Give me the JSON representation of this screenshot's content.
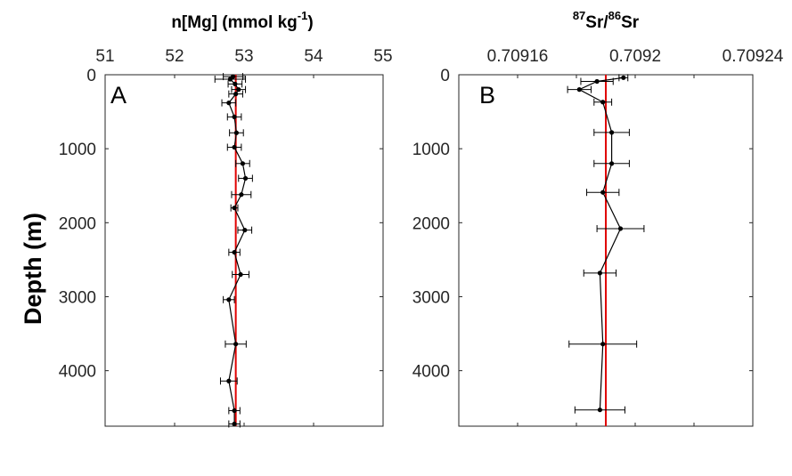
{
  "chart_data": [
    {
      "type": "scatter",
      "panel_label": "A",
      "title": "n[Mg] (mmol kg-1)",
      "title_parts": {
        "main": "n[Mg] (mmol kg",
        "sup": "-1",
        "tail": ")"
      },
      "xlabel": "n[Mg] (mmol kg-1)",
      "ylabel": "Depth (m)",
      "xlim": [
        51,
        55
      ],
      "ylim": [
        0,
        4750
      ],
      "y_reversed": true,
      "x_axis_position": "top",
      "xticks": [
        51,
        52,
        53,
        54,
        55
      ],
      "xtick_labels": [
        "51",
        "52",
        "53",
        "54",
        "55"
      ],
      "yticks": [
        0,
        1000,
        2000,
        3000,
        4000
      ],
      "ytick_labels": [
        "0",
        "1000",
        "2000",
        "3000",
        "4000"
      ],
      "reference_line_x": 52.88,
      "reference_line_color": "#e00000",
      "series_color": "#000000",
      "points": [
        {
          "x": 52.84,
          "y": 25,
          "err": 0.14
        },
        {
          "x": 52.8,
          "y": 60,
          "err": 0.22
        },
        {
          "x": 52.87,
          "y": 125,
          "err": 0.1
        },
        {
          "x": 52.92,
          "y": 200,
          "err": 0.1
        },
        {
          "x": 52.88,
          "y": 260,
          "err": 0.1
        },
        {
          "x": 52.78,
          "y": 380,
          "err": 0.1
        },
        {
          "x": 52.86,
          "y": 570,
          "err": 0.1
        },
        {
          "x": 52.89,
          "y": 785,
          "err": 0.1
        },
        {
          "x": 52.86,
          "y": 980,
          "err": 0.1
        },
        {
          "x": 52.98,
          "y": 1200,
          "err": 0.1
        },
        {
          "x": 53.02,
          "y": 1400,
          "err": 0.1
        },
        {
          "x": 52.96,
          "y": 1620,
          "err": 0.14
        },
        {
          "x": 52.86,
          "y": 1800,
          "err": 0.05
        },
        {
          "x": 53.01,
          "y": 2100,
          "err": 0.1
        },
        {
          "x": 52.86,
          "y": 2400,
          "err": 0.08
        },
        {
          "x": 52.95,
          "y": 2700,
          "err": 0.12
        },
        {
          "x": 52.78,
          "y": 3040,
          "err": 0.08
        },
        {
          "x": 52.88,
          "y": 3640,
          "err": 0.15
        },
        {
          "x": 52.78,
          "y": 4140,
          "err": 0.12
        },
        {
          "x": 52.86,
          "y": 4540,
          "err": 0.08
        },
        {
          "x": 52.86,
          "y": 4720,
          "err": 0.08
        }
      ]
    },
    {
      "type": "scatter",
      "panel_label": "B",
      "title": "87Sr/86Sr",
      "title_parts": {
        "sup1": "87",
        "mid": "Sr/",
        "sup2": "86",
        "tail": "Sr"
      },
      "xlabel": "87Sr/86Sr",
      "ylabel": "",
      "xlim": [
        0.70914,
        0.70924
      ],
      "ylim": [
        0,
        4750
      ],
      "y_reversed": true,
      "x_axis_position": "top",
      "xticks": [
        0.70914,
        0.70916,
        0.70918,
        0.7092,
        0.70922,
        0.70924
      ],
      "xtick_labels": [
        "",
        "0.70916",
        "",
        "0.7092",
        "",
        "0.70924"
      ],
      "yticks": [
        0,
        1000,
        2000,
        3000,
        4000
      ],
      "ytick_labels": [
        "0",
        "1000",
        "2000",
        "3000",
        "4000"
      ],
      "reference_line_x": 0.70919,
      "reference_line_color": "#e00000",
      "series_color": "#000000",
      "points": [
        {
          "x": 0.709196,
          "y": 40,
          "err": 1.5e-06
        },
        {
          "x": 0.709187,
          "y": 90,
          "err": 5.5e-06
        },
        {
          "x": 0.709181,
          "y": 200,
          "err": 4e-06
        },
        {
          "x": 0.709189,
          "y": 370,
          "err": 3e-06
        },
        {
          "x": 0.709192,
          "y": 780,
          "err": 6e-06
        },
        {
          "x": 0.709192,
          "y": 1200,
          "err": 6e-06
        },
        {
          "x": 0.709189,
          "y": 1590,
          "err": 5.5e-06
        },
        {
          "x": 0.709195,
          "y": 2080,
          "err": 8e-06
        },
        {
          "x": 0.709188,
          "y": 2680,
          "err": 5.5e-06
        },
        {
          "x": 0.709189,
          "y": 3640,
          "err": 1.15e-05
        },
        {
          "x": 0.709188,
          "y": 4530,
          "err": 8.5e-06
        }
      ]
    }
  ]
}
